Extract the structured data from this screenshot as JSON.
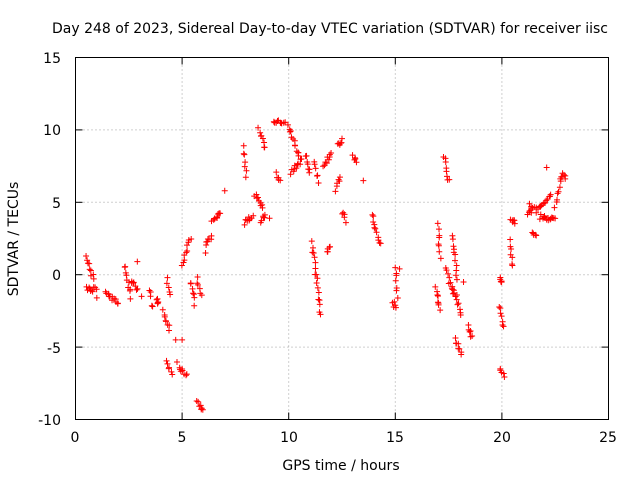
{
  "chart_data": {
    "type": "scatter",
    "title": "Day 248 of 2023, Sidereal Day-to-day VTEC variation (SDTVAR) for receiver iisc",
    "xlabel": "GPS time / hours",
    "ylabel": "SDTVAR / TECUs",
    "xlim": [
      0,
      25
    ],
    "ylim": [
      -10,
      15
    ],
    "xticks": [
      "0",
      "5",
      "10",
      "15",
      "20",
      "25"
    ],
    "yticks": [
      "-10",
      "-5",
      "0",
      "5",
      "10",
      "15"
    ],
    "grid": true,
    "marker": "+",
    "marker_color": "#ff0000",
    "segments": [
      [
        0.5,
        1.2,
        0.85,
        -0.3
      ],
      [
        0.5,
        -1.0,
        0.95,
        -1.0
      ],
      [
        1.4,
        -1.2,
        2.0,
        -2.0
      ],
      [
        2.3,
        0.7,
        2.6,
        -1.5
      ],
      [
        2.6,
        -0.3,
        2.9,
        -1.1
      ],
      [
        3.5,
        -1.0,
        3.6,
        -2.3
      ],
      [
        3.8,
        -1.8,
        3.9,
        -1.9
      ],
      [
        4.1,
        -2.5,
        4.4,
        -3.8
      ],
      [
        4.3,
        -0.3,
        4.4,
        -1.4
      ],
      [
        4.3,
        -6.0,
        4.5,
        -6.9
      ],
      [
        4.8,
        -6.2,
        5.2,
        -7.0
      ],
      [
        5.0,
        0.8,
        5.4,
        2.5
      ],
      [
        5.4,
        -0.5,
        5.6,
        -2.0
      ],
      [
        5.7,
        -0.2,
        5.9,
        -1.4
      ],
      [
        5.7,
        -8.8,
        6.0,
        -9.3
      ],
      [
        6.1,
        2.2,
        6.4,
        2.6
      ],
      [
        6.4,
        3.6,
        6.8,
        4.4
      ],
      [
        7.9,
        8.8,
        8.0,
        6.8
      ],
      [
        7.9,
        3.6,
        8.3,
        4.1
      ],
      [
        8.4,
        5.5,
        8.8,
        4.6
      ],
      [
        8.6,
        10.0,
        8.9,
        8.8
      ],
      [
        8.7,
        3.5,
        8.9,
        4.2
      ],
      [
        9.3,
        10.4,
        9.8,
        10.6
      ],
      [
        9.4,
        7.0,
        9.6,
        6.4
      ],
      [
        10.0,
        10.4,
        10.5,
        8.1
      ],
      [
        10.1,
        7.0,
        10.6,
        8.0
      ],
      [
        10.8,
        8.3,
        11.0,
        7.0
      ],
      [
        11.2,
        7.7,
        11.4,
        6.5
      ],
      [
        11.1,
        2.2,
        11.5,
        -2.7
      ],
      [
        11.6,
        7.5,
        12.0,
        8.4
      ],
      [
        11.8,
        1.6,
        11.9,
        2.0
      ],
      [
        12.2,
        5.8,
        12.4,
        6.8
      ],
      [
        12.3,
        9.0,
        12.5,
        9.2
      ],
      [
        12.5,
        4.3,
        12.7,
        3.7
      ],
      [
        13.0,
        8.1,
        13.2,
        7.9
      ],
      [
        13.9,
        4.2,
        14.3,
        2.0
      ],
      [
        14.9,
        -1.8,
        15.0,
        -2.4
      ],
      [
        15.0,
        0.5,
        15.1,
        -1.5
      ],
      [
        16.9,
        -0.8,
        17.1,
        -2.3
      ],
      [
        17.0,
        3.4,
        17.1,
        1.3
      ],
      [
        17.3,
        8.2,
        17.5,
        6.4
      ],
      [
        17.4,
        0.5,
        17.7,
        -1.4
      ],
      [
        17.7,
        2.7,
        17.9,
        -0.2
      ],
      [
        17.7,
        -0.8,
        18.1,
        -2.7
      ],
      [
        17.8,
        -4.5,
        18.1,
        -5.5
      ],
      [
        18.4,
        -3.5,
        18.6,
        -4.4
      ],
      [
        19.9,
        -0.3,
        20.0,
        -0.5
      ],
      [
        19.9,
        -2.2,
        20.1,
        -3.6
      ],
      [
        19.9,
        -6.6,
        20.1,
        -6.9
      ],
      [
        20.4,
        2.4,
        20.5,
        0.5
      ],
      [
        20.5,
        3.6,
        20.6,
        3.7
      ],
      [
        21.2,
        4.3,
        21.4,
        4.4
      ],
      [
        21.3,
        4.8,
        21.5,
        4.6
      ],
      [
        21.4,
        2.8,
        21.6,
        2.7
      ],
      [
        21.6,
        4.4,
        22.3,
        5.4
      ],
      [
        21.8,
        4.0,
        22.5,
        3.8
      ],
      [
        22.5,
        4.8,
        22.8,
        6.8
      ],
      [
        22.8,
        6.9,
        23.0,
        6.7
      ]
    ],
    "points": [
      [
        7.0,
        5.8
      ],
      [
        4.7,
        -4.5
      ],
      [
        5.0,
        -4.5
      ],
      [
        12.5,
        9.4
      ],
      [
        13.5,
        6.5
      ],
      [
        2.9,
        0.9
      ],
      [
        22.1,
        7.4
      ],
      [
        20.4,
        3.8
      ],
      [
        3.1,
        -1.5
      ],
      [
        9.1,
        3.9
      ],
      [
        1.0,
        -1.6
      ],
      [
        15.2,
        0.4
      ],
      [
        17.0,
        -1.9
      ],
      [
        18.2,
        -0.5
      ],
      [
        6.1,
        1.5
      ]
    ]
  }
}
